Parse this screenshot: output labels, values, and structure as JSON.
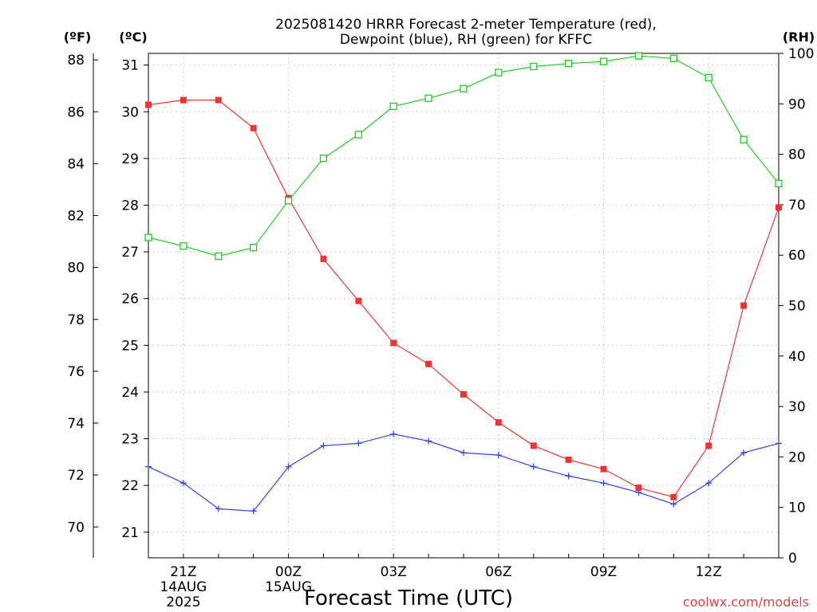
{
  "chart_data": {
    "type": "line",
    "title_line1": "2025081420 HRRR Forecast 2-meter Temperature (red),",
    "title_line2": "Dewpoint (blue), RH (green) for KFFC",
    "xlabel": "Forecast Time (UTC)",
    "unit_labels": {
      "fahrenheit": "(ºF)",
      "celsius": "(ºC)",
      "rh": "(RH)"
    },
    "x_ticks": [
      {
        "hour": 1,
        "label": "21Z",
        "sub1": "14AUG",
        "sub2": "2025"
      },
      {
        "hour": 4,
        "label": "00Z",
        "sub1": "15AUG",
        "sub2": ""
      },
      {
        "hour": 7,
        "label": "03Z",
        "sub1": "",
        "sub2": ""
      },
      {
        "hour": 10,
        "label": "06Z",
        "sub1": "",
        "sub2": ""
      },
      {
        "hour": 13,
        "label": "09Z",
        "sub1": "",
        "sub2": ""
      },
      {
        "hour": 16,
        "label": "12Z",
        "sub1": "",
        "sub2": ""
      }
    ],
    "x_range": [
      0,
      18
    ],
    "celsius_range": [
      20.45,
      31.25
    ],
    "celsius_ticks": [
      21,
      22,
      23,
      24,
      25,
      26,
      27,
      28,
      29,
      30,
      31
    ],
    "fahrenheit_ticks": [
      70,
      72,
      74,
      76,
      78,
      80,
      82,
      84,
      86,
      88
    ],
    "rh_range": [
      0,
      100
    ],
    "rh_ticks": [
      0,
      10,
      20,
      30,
      40,
      50,
      60,
      70,
      80,
      90,
      100
    ],
    "grid": true,
    "series": [
      {
        "name": "Temperature",
        "color": "#ee3333",
        "marker": "filled-square",
        "axis": "celsius",
        "values": [
          30.15,
          30.25,
          30.25,
          29.65,
          28.15,
          26.85,
          25.95,
          25.05,
          24.6,
          23.95,
          23.35,
          22.85,
          22.55,
          22.35,
          21.95,
          21.75,
          22.85,
          25.85,
          27.95
        ]
      },
      {
        "name": "Dewpoint",
        "color": "#3344ee",
        "marker": "plus",
        "axis": "celsius",
        "values": [
          22.4,
          22.05,
          21.5,
          21.45,
          22.4,
          22.85,
          22.9,
          23.1,
          22.95,
          22.7,
          22.65,
          22.4,
          22.2,
          22.05,
          21.85,
          21.6,
          22.05,
          22.7,
          22.9
        ]
      },
      {
        "name": "RH",
        "color": "#22cc22",
        "marker": "open-square",
        "axis": "rh",
        "values": [
          63.5,
          61.8,
          59.8,
          61.5,
          70.8,
          79.2,
          83.9,
          89.5,
          91.1,
          93.0,
          96.2,
          97.4,
          98.0,
          98.4,
          99.5,
          99.0,
          95.2,
          82.9,
          74.2
        ]
      }
    ]
  },
  "footer": {
    "credit": "coolwx.com/models"
  }
}
